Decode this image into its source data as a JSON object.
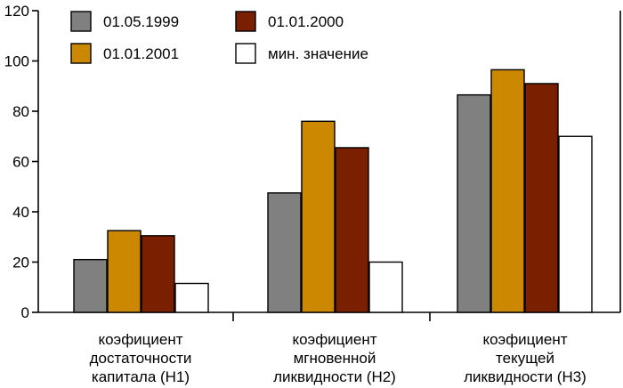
{
  "chart_data": {
    "type": "bar",
    "title": "",
    "xlabel": "",
    "ylabel": "",
    "ylim": [
      0,
      120
    ],
    "yticks": [
      0,
      20,
      40,
      60,
      80,
      100,
      120
    ],
    "grid": false,
    "legend_position": "top-left",
    "categories": [
      [
        "коэфициент",
        "достаточности",
        "капитала (Н1)"
      ],
      [
        "коэфициент",
        "мгновенной",
        "ликвидности (Н2)"
      ],
      [
        "коэфициент",
        "текущей",
        "ликвидности (Н3)"
      ]
    ],
    "series": [
      {
        "name": "01.05.1999",
        "color": "#808080",
        "values": [
          21,
          47.5,
          86.5
        ]
      },
      {
        "name": "01.01.2001",
        "color": "#cc8800",
        "values": [
          32.5,
          76,
          96.5
        ]
      },
      {
        "name": "01.01.2000",
        "color": "#7a2000",
        "values": [
          30.5,
          65.5,
          91
        ]
      },
      {
        "name": "мин. значение",
        "color": "#ffffff",
        "values": [
          11.5,
          20,
          70
        ]
      }
    ],
    "legend_order": [
      0,
      2,
      1,
      3
    ]
  }
}
